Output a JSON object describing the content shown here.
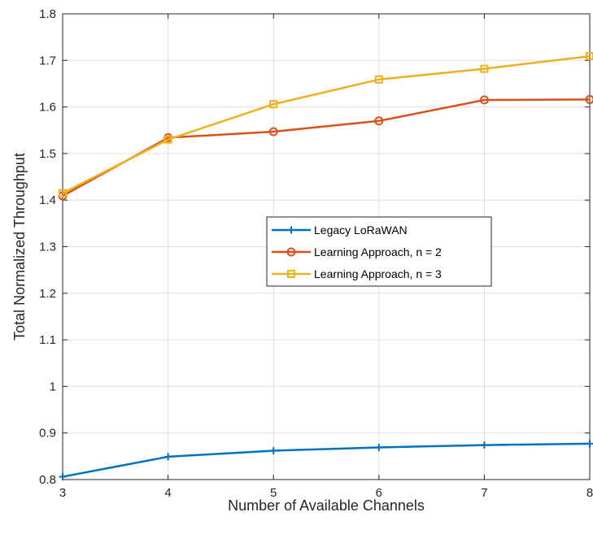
{
  "chart_data": {
    "type": "line",
    "title": "",
    "xlabel": "Number of Available Channels",
    "ylabel": "Total Normalized Throughput",
    "x": [
      3,
      4,
      5,
      6,
      7,
      8
    ],
    "xlim": [
      3,
      8
    ],
    "ylim": [
      0.8,
      1.8
    ],
    "xticks": [
      3,
      4,
      5,
      6,
      7,
      8
    ],
    "yticks": [
      0.8,
      0.9,
      1.0,
      1.1,
      1.2,
      1.3,
      1.4,
      1.5,
      1.6,
      1.7,
      1.8
    ],
    "xtick_labels": [
      "3",
      "4",
      "5",
      "6",
      "7",
      "8"
    ],
    "ytick_labels": [
      "0.8",
      "0.9",
      "1",
      "1.1",
      "1.2",
      "1.3",
      "1.4",
      "1.5",
      "1.6",
      "1.7",
      "1.8"
    ],
    "grid": true,
    "legend_position": "center-right",
    "series": [
      {
        "name": "Legacy LoRaWAN",
        "values": [
          0.806,
          0.849,
          0.862,
          0.869,
          0.874,
          0.877
        ],
        "color": "#0072BD",
        "marker": "plus"
      },
      {
        "name": "Learning Approach, n = 2",
        "values": [
          1.409,
          1.534,
          1.547,
          1.57,
          1.615,
          1.616
        ],
        "color": "#D95319",
        "marker": "circle"
      },
      {
        "name": "Learning Approach, n = 3",
        "values": [
          1.415,
          1.53,
          1.606,
          1.659,
          1.682,
          1.709
        ],
        "color": "#EDB120",
        "marker": "square"
      }
    ]
  }
}
